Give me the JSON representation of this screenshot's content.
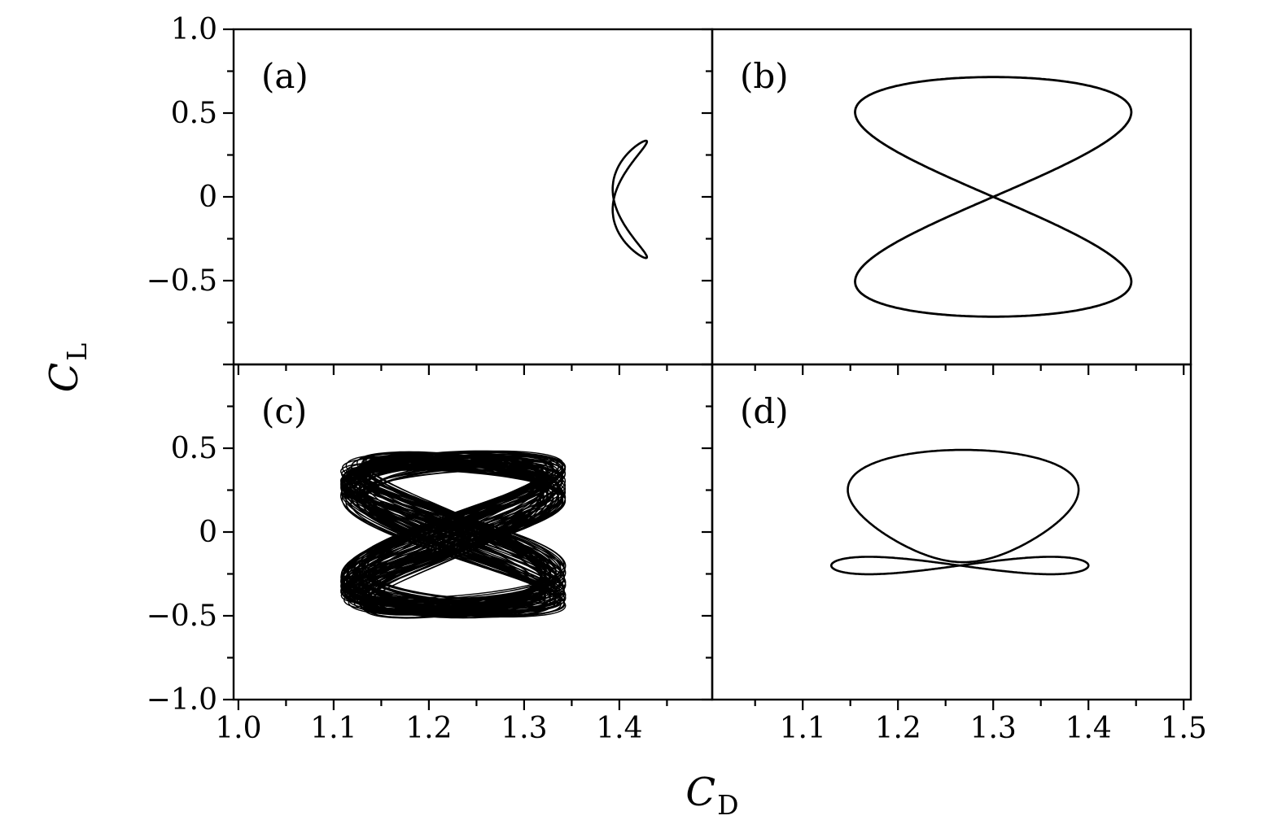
{
  "chart_data": {
    "type": "line",
    "title": "",
    "xlabel": "C_D",
    "ylabel": "C_L",
    "xlabel_base": "C",
    "xlabel_sub": "D",
    "ylabel_base": "C",
    "ylabel_sub": "L",
    "grid": false,
    "line_color": "#000000",
    "background_color": "#ffffff",
    "x_major_ticks": [
      1.0,
      1.1,
      1.2,
      1.3,
      1.4,
      1.5
    ],
    "x_minor_ticks": [
      1.05,
      1.15,
      1.25,
      1.35,
      1.45
    ],
    "y_major_ticks": [
      -1.0,
      -0.5,
      0.0,
      0.5,
      1.0
    ],
    "y_minor_ticks": [
      -0.75,
      -0.25,
      0.25,
      0.75
    ],
    "panels": [
      {
        "id": "a",
        "label": "(a)",
        "row": 0,
        "col": 0,
        "x_range": [
          0.995,
          1.4975
        ],
        "y_range": [
          -1.0,
          1.0
        ],
        "x_tick_labels": [],
        "y_tick_labels": [
          {
            "v": 1.0,
            "t": "1.0"
          },
          {
            "v": 0.5,
            "t": "0.5"
          },
          {
            "v": 0.0,
            "t": "0"
          },
          {
            "v": -0.5,
            "t": "−0.5"
          }
        ],
        "series": [
          {
            "name": "period-one crescent orbit",
            "description": "thin crescent-shaped limit cycle pinched at its left middle, CD from 1.394 to 1.429, CL from -0.37 to 0.34",
            "type": "param",
            "x0": 1.411,
            "y0": -0.015,
            "xterms": [
              [
                0.018,
                2,
                -1.221
              ]
            ],
            "yterms": [
              [
                0.35,
                1,
                0
              ]
            ],
            "t": [
              0,
              6.28319
            ],
            "n": 500,
            "line_width": 2.6
          }
        ]
      },
      {
        "id": "b",
        "label": "(b)",
        "row": 0,
        "col": 1,
        "x_range": [
          1.005,
          1.5075
        ],
        "y_range": [
          -1.0,
          1.0
        ],
        "x_tick_labels": [],
        "y_tick_labels": [],
        "series": [
          {
            "name": "figure-eight orbit",
            "description": "large vertical figure-eight limit cycle, CD 1.155 to 1.445, CL -0.72 to 0.72, self-crossing at (1.30, 0)",
            "type": "param",
            "x0": 1.3,
            "y0": 0.0,
            "xterms": [
              [
                0.145,
                2,
                0
              ]
            ],
            "yterms": [
              [
                0.715,
                1,
                0
              ]
            ],
            "t": [
              0,
              6.28319
            ],
            "n": 700,
            "line_width": 2.8
          }
        ]
      },
      {
        "id": "c",
        "label": "(c)",
        "row": 1,
        "col": 0,
        "x_range": [
          0.995,
          1.4975
        ],
        "y_range": [
          -1.0,
          1.0
        ],
        "x_tick_labels": [
          {
            "v": 1.0,
            "t": "1.0"
          },
          {
            "v": 1.1,
            "t": "1.1"
          },
          {
            "v": 1.2,
            "t": "1.2"
          },
          {
            "v": 1.3,
            "t": "1.3"
          },
          {
            "v": 1.4,
            "t": "1.4"
          }
        ],
        "y_tick_labels": [
          {
            "v": 0.5,
            "t": "0.5"
          },
          {
            "v": 0.0,
            "t": "0"
          },
          {
            "v": -0.5,
            "t": "−0.5"
          },
          {
            "v": -1.0,
            "t": "−1.0"
          }
        ],
        "series": [
          {
            "name": "aperiodic attractor band",
            "description": "dense quasi-periodic trajectory filling a nearly black band, CD 1.11 to 1.34, CL -0.50 to 0.48, speckled near top and bottom edges",
            "type": "modulated",
            "x0": 1.2255,
            "y0": -0.015,
            "xAmp": 0.105,
            "xAmpMod": [
              0.013,
              0.0713,
              0
            ],
            "xPhaseMod": [
              0.55,
              0.0397,
              0.7
            ],
            "yAmp": 0.44,
            "yAmpMod": [
              0.045,
              0.1131,
              1.3
            ],
            "yDrift": [
              0.015,
              0.0513,
              0
            ],
            "t": [
              0,
              565.487
            ],
            "n": 18000,
            "line_width": 1.4
          }
        ]
      },
      {
        "id": "d",
        "label": "(d)",
        "row": 1,
        "col": 1,
        "x_range": [
          1.005,
          1.5075
        ],
        "y_range": [
          -1.0,
          1.0
        ],
        "x_tick_labels": [
          {
            "v": 1.1,
            "t": "1.1"
          },
          {
            "v": 1.2,
            "t": "1.2"
          },
          {
            "v": 1.3,
            "t": "1.3"
          },
          {
            "v": 1.4,
            "t": "1.4"
          },
          {
            "v": 1.5,
            "t": "1.5"
          }
        ],
        "y_tick_labels": [],
        "series": [
          {
            "name": "large asymmetric loop",
            "description": "big upper loop, CD 1.15 to 1.38, CL up to 0.49, bottom near -0.18",
            "type": "param",
            "x0": 1.2685,
            "y0": 0.155,
            "xterms": [
              [
                0.115,
                1,
                0
              ],
              [
                0.02,
                2,
                0
              ]
            ],
            "yterms": [
              [
                0.335,
                1,
                1.5708
              ]
            ],
            "t": [
              0,
              6.28319
            ],
            "n": 500,
            "line_width": 2.6
          },
          {
            "name": "small double lobe",
            "description": "flat small figure-eight around CL = -0.20, CD 1.13 to 1.40, crossing the bottom of the large loop",
            "type": "param",
            "x0": 1.265,
            "y0": -0.2,
            "xterms": [
              [
                0.135,
                1,
                1.5708
              ]
            ],
            "yterms": [
              [
                0.052,
                2,
                0
              ]
            ],
            "t": [
              0,
              6.28319
            ],
            "n": 500,
            "line_width": 2.6
          }
        ]
      }
    ]
  }
}
